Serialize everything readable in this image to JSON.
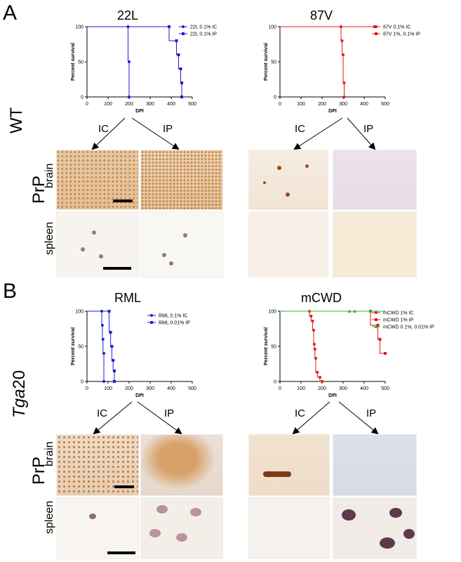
{
  "panels": {
    "A": {
      "letter": "A",
      "strain_label": "WT",
      "route_ic": "IC",
      "route_ip": "IP",
      "prp_label": "PrP",
      "brain_label": "brain",
      "spleen_label": "spleen"
    },
    "B": {
      "letter": "B",
      "strain_label": "Tga20",
      "strain_italic_prefix": "Tga",
      "strain_suffix": "20",
      "route_ic": "IC",
      "route_ip": "IP",
      "prp_label": "PrP",
      "brain_label": "brain",
      "spleen_label": "spleen"
    }
  },
  "colors": {
    "blue": "#1f1fd0",
    "red": "#e21a1a",
    "green": "#2cb82c"
  },
  "chart_data": [
    {
      "id": "22L",
      "type": "line",
      "title": "22L",
      "xlabel": "DPI",
      "ylabel": "Percent survival",
      "xlim": [
        0,
        500
      ],
      "ylim": [
        0,
        100
      ],
      "xticks": [
        "0",
        "100",
        "200",
        "300",
        "400",
        "500"
      ],
      "yticks": [
        "0",
        "50",
        "100"
      ],
      "series": [
        {
          "name": "22L 0.1% IC",
          "color": "#1f1fd0",
          "marker": "circle",
          "x": [
            0,
            195,
            195,
            200,
            200
          ],
          "y": [
            100,
            100,
            50,
            50,
            0
          ]
        },
        {
          "name": "22L 0.1% IP",
          "color": "#1f1fd0",
          "marker": "square",
          "x": [
            0,
            390,
            390,
            425,
            425,
            435,
            435,
            445,
            445,
            450,
            450
          ],
          "y": [
            100,
            100,
            80,
            80,
            60,
            60,
            40,
            40,
            20,
            20,
            0
          ]
        }
      ]
    },
    {
      "id": "87V",
      "type": "line",
      "title": "87V",
      "xlabel": "DPI",
      "ylabel": "Percent survival",
      "xlim": [
        0,
        500
      ],
      "ylim": [
        0,
        100
      ],
      "xticks": [
        "0",
        "100",
        "200",
        "300",
        "400",
        "500"
      ],
      "yticks": [
        "0",
        "50",
        "100"
      ],
      "series": [
        {
          "name": "87V 0.1% IC",
          "color": "#e21a1a",
          "marker": "circle",
          "x": [
            0,
            290,
            290,
            295,
            295,
            300,
            300,
            305,
            305
          ],
          "y": [
            100,
            100,
            80,
            80,
            60,
            60,
            20,
            20,
            0
          ]
        },
        {
          "name": "87V 1%, 0.1% IP",
          "color": "#e21a1a",
          "marker": "square",
          "x": [
            0,
            450
          ],
          "y": [
            100,
            100
          ]
        }
      ]
    },
    {
      "id": "RML",
      "type": "line",
      "title": "RML",
      "xlabel": "DPI",
      "ylabel": "Percent survival",
      "xlim": [
        0,
        500
      ],
      "ylim": [
        0,
        100
      ],
      "xticks": [
        "0",
        "100",
        "200",
        "300",
        "400",
        "500"
      ],
      "yticks": [
        "0",
        "50",
        "100"
      ],
      "series": [
        {
          "name": "RML 0.1% IC",
          "color": "#1f1fd0",
          "marker": "circle",
          "x": [
            0,
            70,
            70,
            73,
            73,
            76,
            76,
            80,
            80
          ],
          "y": [
            100,
            100,
            80,
            80,
            60,
            60,
            40,
            40,
            0
          ]
        },
        {
          "name": "RML 0.01% IP",
          "color": "#1f1fd0",
          "marker": "square",
          "x": [
            0,
            105,
            105,
            112,
            112,
            118,
            118,
            124,
            124,
            130,
            130
          ],
          "y": [
            100,
            100,
            70,
            70,
            50,
            50,
            30,
            30,
            15,
            15,
            0
          ]
        }
      ]
    },
    {
      "id": "mCWD",
      "type": "line",
      "title": "mCWD",
      "xlabel": "DPI",
      "ylabel": "Percent survival",
      "xlim": [
        0,
        500
      ],
      "ylim": [
        0,
        100
      ],
      "xticks": [
        "0",
        "100",
        "200",
        "300",
        "400",
        "500"
      ],
      "yticks": [
        "0",
        "50",
        "100"
      ],
      "series": [
        {
          "name": "mCWD 1% IC",
          "color": "#e21a1a",
          "marker": "circle",
          "x": [
            0,
            140,
            140,
            148,
            148,
            155,
            155,
            160,
            160,
            163,
            163,
            166,
            166,
            170,
            170,
            178,
            178,
            190,
            190,
            200,
            200
          ],
          "y": [
            100,
            100,
            93,
            93,
            86,
            86,
            73,
            73,
            53,
            53,
            46,
            46,
            33,
            33,
            13,
            13,
            6,
            6,
            0,
            0,
            0
          ]
        },
        {
          "name": "mCWD 1% IP",
          "color": "#e21a1a",
          "marker": "square",
          "x": [
            0,
            430,
            430,
            465,
            465,
            475,
            475,
            500
          ],
          "y": [
            100,
            100,
            80,
            80,
            60,
            60,
            40,
            40
          ]
        },
        {
          "name": "mCWD 0.1%, 0.01% IP",
          "color": "#2cb82c",
          "marker": "triangle",
          "x": [
            0,
            500
          ],
          "y": [
            100,
            100
          ],
          "points_x": [
            330,
            355,
            430
          ],
          "points_y": [
            100,
            100,
            100
          ]
        }
      ]
    }
  ]
}
